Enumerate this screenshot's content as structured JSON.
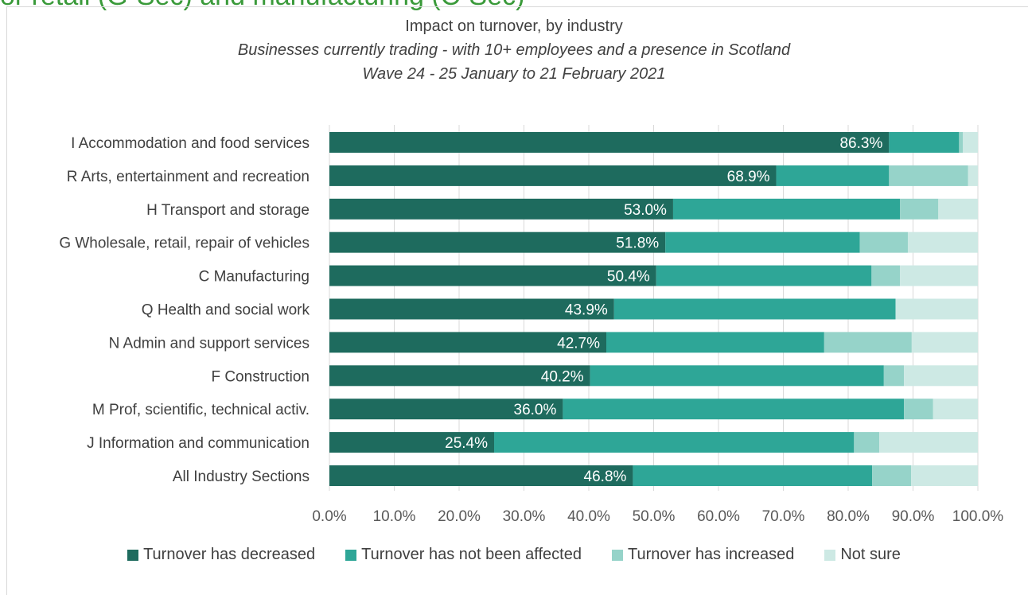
{
  "header_fragment": "or retail (G-Sec) and manufacturing (C-Sec)",
  "chart_data": {
    "type": "bar",
    "orientation": "horizontal",
    "stacked": true,
    "title": "Impact on turnover, by industry",
    "subtitle": "Businesses currently trading -  with 10+ employees and a presence in Scotland",
    "subtitle2": "Wave 24 - 25 January to 21 February 2021",
    "categories": [
      "I Accommodation and food services",
      "R Arts, entertainment and recreation",
      "H Transport and storage",
      "G Wholesale, retail, repair of vehicles",
      "C Manufacturing",
      "Q Health and social work",
      "N Admin and support services",
      "F Construction",
      "M Prof, scientific, technical activ.",
      "J Information and communication",
      "All Industry Sections"
    ],
    "series": [
      {
        "name": "Turnover has decreased",
        "color": "#1e6b5e",
        "values": [
          86.3,
          68.9,
          53.0,
          51.8,
          50.4,
          43.9,
          42.7,
          40.2,
          36.0,
          25.4,
          46.8
        ],
        "labels": [
          "86.3%",
          "68.9%",
          "53.0%",
          "51.8%",
          "50.4%",
          "43.9%",
          "42.7%",
          "40.2%",
          "36.0%",
          "25.4%",
          "46.8%"
        ]
      },
      {
        "name": "Turnover has not been affected",
        "color": "#2ea697",
        "values": [
          10.8,
          17.4,
          35.0,
          30.0,
          33.2,
          43.4,
          33.6,
          45.3,
          52.6,
          55.5,
          36.9
        ]
      },
      {
        "name": "Turnover has increased",
        "color": "#96d3c9",
        "values": [
          0.6,
          12.2,
          5.9,
          7.4,
          4.4,
          0.0,
          13.5,
          3.1,
          4.5,
          3.9,
          6.0
        ]
      },
      {
        "name": "Not sure",
        "color": "#cde9e4",
        "values": [
          2.3,
          1.5,
          6.1,
          10.8,
          12.0,
          12.7,
          10.2,
          11.4,
          6.9,
          15.2,
          10.3
        ]
      }
    ],
    "x_ticks": [
      "0.0%",
      "10.0%",
      "20.0%",
      "30.0%",
      "40.0%",
      "50.0%",
      "60.0%",
      "70.0%",
      "80.0%",
      "90.0%",
      "100.0%"
    ],
    "xlim": [
      0,
      100
    ],
    "grid": true,
    "legend": "bottom"
  }
}
